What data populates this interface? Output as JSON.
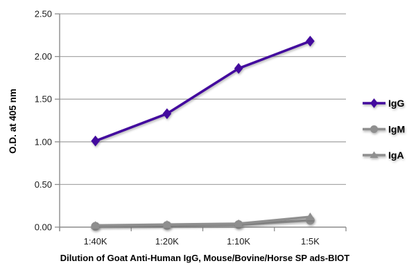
{
  "chart_data": {
    "type": "line",
    "title": "",
    "xlabel": "Dilution of Goat Anti-Human IgG, Mouse/Bovine/Horse SP ads-BIOT",
    "ylabel": "O.D. at 405 nm",
    "categories": [
      "1:40K",
      "1:20K",
      "1:10K",
      "1:5K"
    ],
    "series": [
      {
        "name": "IgG",
        "marker": "diamond",
        "color": "#430a9e",
        "values": [
          1.01,
          1.33,
          1.86,
          2.18
        ]
      },
      {
        "name": "IgM",
        "marker": "circle",
        "color": "#8f8f8f",
        "values": [
          0.01,
          0.02,
          0.03,
          0.08
        ]
      },
      {
        "name": "IgA",
        "marker": "triangle",
        "color": "#8f8f8f",
        "values": [
          0.02,
          0.03,
          0.04,
          0.12
        ]
      }
    ],
    "ylim": [
      0,
      2.5
    ],
    "yticks": [
      "0.00",
      "0.50",
      "1.00",
      "1.50",
      "2.00",
      "2.50"
    ],
    "grid": true,
    "legend_position": "right",
    "colors": {
      "gridline": "#a9a9a9",
      "axis": "#8c8c8c",
      "text": "#000000",
      "background": "#ffffff"
    }
  }
}
